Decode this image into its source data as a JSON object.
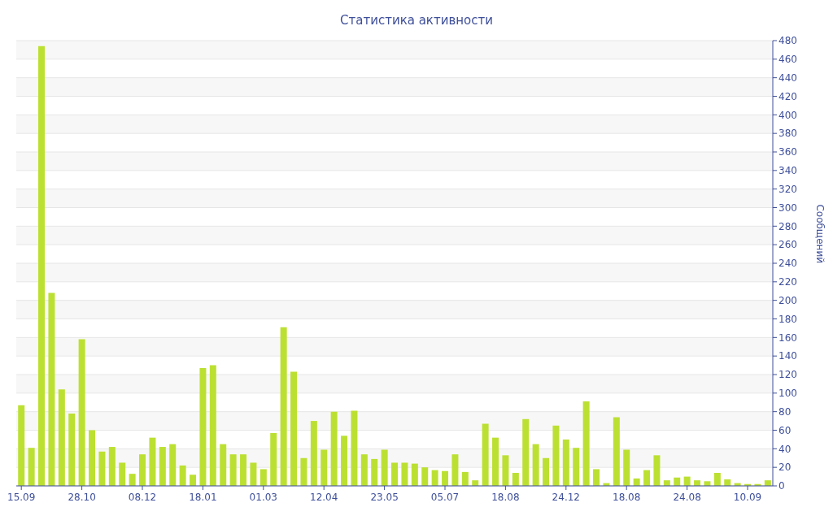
{
  "chart_data": {
    "type": "bar",
    "title": "Статистика активности",
    "y2label": "Сообщений",
    "categories": [
      "15.09",
      null,
      null,
      null,
      null,
      null,
      "28.10",
      null,
      null,
      null,
      null,
      null,
      "08.12",
      null,
      null,
      null,
      null,
      null,
      "18.01",
      null,
      null,
      null,
      null,
      null,
      "01.03",
      null,
      null,
      null,
      null,
      null,
      "12.04",
      null,
      null,
      null,
      null,
      null,
      "23.05",
      null,
      null,
      null,
      null,
      null,
      "05.07",
      null,
      null,
      null,
      null,
      null,
      "18.08",
      null,
      null,
      null,
      null,
      null,
      "24.12",
      null,
      null,
      null,
      null,
      null,
      "18.08",
      null,
      null,
      null,
      null,
      null,
      "24.08",
      null,
      null,
      null,
      null,
      null,
      "10.09",
      null,
      null
    ],
    "series": [
      {
        "color": "#bce032",
        "axis": "y2",
        "values": [
          87,
          41,
          474,
          208,
          104,
          78,
          158,
          60,
          37,
          42,
          25,
          13,
          34,
          52,
          42,
          45,
          22,
          12,
          127,
          130,
          45,
          34,
          34,
          25,
          18,
          57,
          171,
          123,
          30,
          70,
          39,
          80,
          54,
          81,
          34,
          29,
          39,
          25,
          25,
          24,
          20,
          17,
          16,
          34,
          15,
          6,
          67,
          52,
          33,
          14,
          72,
          45,
          30,
          65,
          50,
          41,
          91,
          18,
          3,
          74,
          39,
          8,
          17,
          33,
          6,
          9,
          10,
          6,
          5,
          14,
          7,
          3,
          2,
          2,
          6
        ]
      }
    ],
    "y2lim": [
      0,
      480
    ],
    "y2ticks": [
      0,
      20,
      40,
      60,
      80,
      100,
      120,
      140,
      160,
      180,
      200,
      220,
      240,
      260,
      280,
      300,
      320,
      340,
      360,
      380,
      400,
      420,
      440,
      460,
      480
    ],
    "grid": "y"
  }
}
